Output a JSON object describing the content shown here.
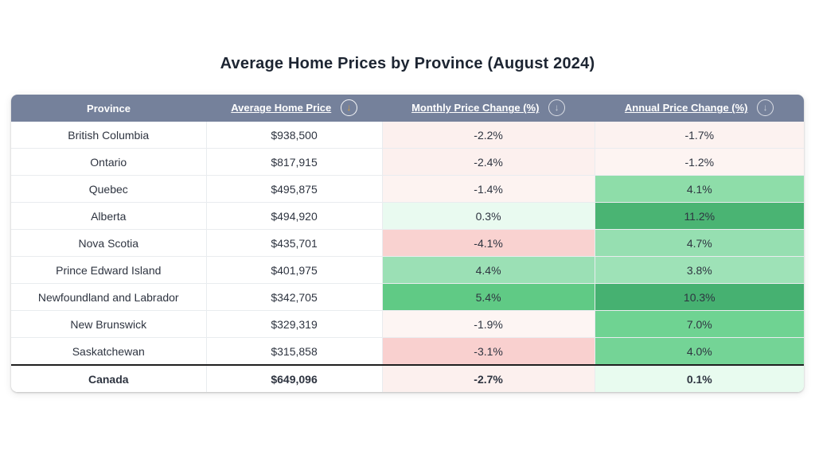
{
  "page": {
    "title": "Average Home Prices by Province (August 2024)"
  },
  "colors": {
    "header_bg": "#75819b",
    "header_text": "#ffffff",
    "sort_arrow_active": "#d9a03c",
    "sort_arrow_inactive": "#ffffff",
    "row_border": "#e9ecef",
    "total_divider": "#1f1f1f",
    "text": "#2e3440",
    "negative_strong": "#f9d0cf",
    "negative_light": "#fdf2f0",
    "positive_faint": "#e9faf0",
    "positive_light": "#9ae0b4",
    "positive_medium": "#6fd392",
    "positive_strong": "#4ab473"
  },
  "table": {
    "columns": [
      {
        "label": "Province",
        "sortable": false,
        "sort_active": false
      },
      {
        "label": "Average Home Price",
        "sortable": true,
        "sort_active": true,
        "icon": "down-arrow-circle"
      },
      {
        "label": "Monthly Price Change (%)",
        "sortable": true,
        "sort_active": false,
        "icon": "down-arrow-circle"
      },
      {
        "label": "Annual Price Change (%)",
        "sortable": true,
        "sort_active": false,
        "icon": "down-arrow-circle"
      }
    ],
    "sort_arrow_glyph": "↓",
    "rows": [
      {
        "province": "British Columbia",
        "price": "$938,500",
        "monthly": "-2.2%",
        "annual": "-1.7%",
        "monthly_bg": "#fcf0ee",
        "annual_bg": "#fcf2f0",
        "is_total": false
      },
      {
        "province": "Ontario",
        "price": "$817,915",
        "monthly": "-2.4%",
        "annual": "-1.2%",
        "monthly_bg": "#fcf0ee",
        "annual_bg": "#fdf4f2",
        "is_total": false
      },
      {
        "province": "Quebec",
        "price": "$495,875",
        "monthly": "-1.4%",
        "annual": "4.1%",
        "monthly_bg": "#fdf3f1",
        "annual_bg": "#8edda9",
        "is_total": false
      },
      {
        "province": "Alberta",
        "price": "$494,920",
        "monthly": "0.3%",
        "annual": "11.2%",
        "monthly_bg": "#e9faf0",
        "annual_bg": "#4ab473",
        "is_total": false
      },
      {
        "province": "Nova Scotia",
        "price": "$435,701",
        "monthly": "-4.1%",
        "annual": "4.7%",
        "monthly_bg": "#f9d2d0",
        "annual_bg": "#96dfb1",
        "is_total": false
      },
      {
        "province": "Prince Edward Island",
        "price": "$401,975",
        "monthly": "4.4%",
        "annual": "3.8%",
        "monthly_bg": "#9be0b5",
        "annual_bg": "#9ee2b7",
        "is_total": false
      },
      {
        "province": "Newfoundland and Labrador",
        "price": "$342,705",
        "monthly": "5.4%",
        "annual": "10.3%",
        "monthly_bg": "#60ca85",
        "annual_bg": "#46b171",
        "is_total": false
      },
      {
        "province": "New Brunswick",
        "price": "$329,319",
        "monthly": "-1.9%",
        "annual": "7.0%",
        "monthly_bg": "#fdf5f3",
        "annual_bg": "#6fd392",
        "is_total": false
      },
      {
        "province": "Saskatchewan",
        "price": "$315,858",
        "monthly": "-3.1%",
        "annual": "4.0%",
        "monthly_bg": "#f9d0cf",
        "annual_bg": "#74d496",
        "is_total": false
      },
      {
        "province": "Canada",
        "price": "$649,096",
        "monthly": "-2.7%",
        "annual": "0.1%",
        "monthly_bg": "#fcf0ee",
        "annual_bg": "#e8fbef",
        "is_total": true
      }
    ]
  },
  "chart_data": {
    "type": "table",
    "title": "Average Home Prices by Province (August 2024)",
    "columns": [
      "Province",
      "Average Home Price",
      "Monthly Price Change (%)",
      "Annual Price Change (%)"
    ],
    "sorted_by": "Average Home Price",
    "sort_direction": "descending",
    "provinces": [
      "British Columbia",
      "Ontario",
      "Quebec",
      "Alberta",
      "Nova Scotia",
      "Prince Edward Island",
      "Newfoundland and Labrador",
      "New Brunswick",
      "Saskatchewan",
      "Canada"
    ],
    "average_home_price": [
      938500,
      817915,
      495875,
      494920,
      435701,
      401975,
      342705,
      329319,
      315858,
      649096
    ],
    "monthly_price_change_pct": [
      -2.2,
      -2.4,
      -1.4,
      0.3,
      -4.1,
      4.4,
      5.4,
      -1.9,
      -3.1,
      -2.7
    ],
    "annual_price_change_pct": [
      -1.7,
      -1.2,
      4.1,
      11.2,
      4.7,
      3.8,
      10.3,
      7.0,
      4.0,
      0.1
    ],
    "conditional_formatting": "negative values shaded pink, positive values shaded green, intensity scales with magnitude",
    "total_row": "Canada"
  }
}
